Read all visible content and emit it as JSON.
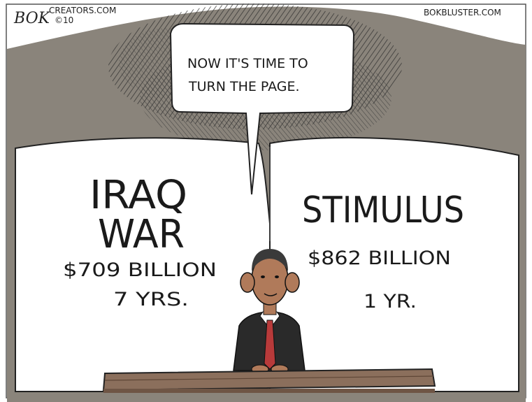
{
  "credits": {
    "signature": "BOK",
    "site": "CREATORS.COM",
    "year": "©10",
    "blog": "BOKBLUSTER.COM"
  },
  "speech_bubble": {
    "line1": "NOW IT'S TIME TO",
    "line2": "TURN THE PAGE."
  },
  "left_page": {
    "title_line1": "IRAQ",
    "title_line2": "WAR",
    "amount": "$709 BILLION",
    "duration": "7 YRS."
  },
  "right_page": {
    "title": "STIMULUS",
    "amount": "$862 BILLION",
    "duration": "1 YR."
  },
  "colors": {
    "background_hills": "#8a847b",
    "sky": "#ffffff",
    "book_page": "#ffffff",
    "desk": "#8b6f5c",
    "suit": "#2a2a2a",
    "tie": "#b83a3a",
    "skin": "#b07a5a"
  }
}
